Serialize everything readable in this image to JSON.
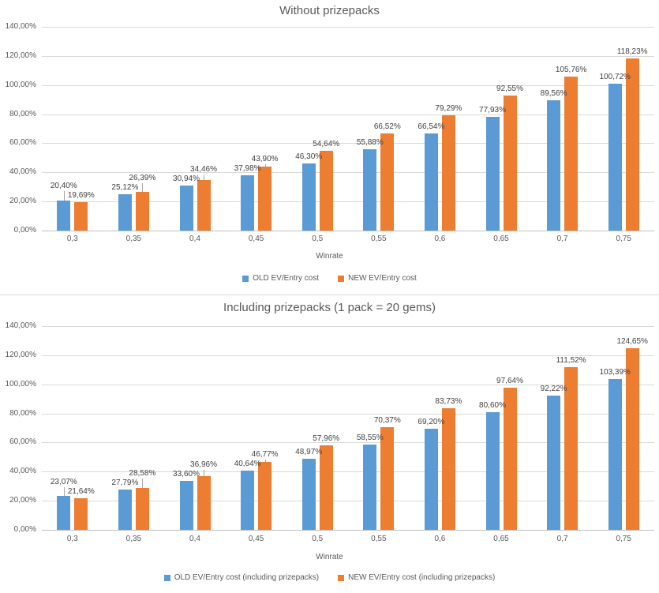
{
  "accent_colors": {
    "series_old_blue": "#5B9BD5",
    "series_new_orange": "#ED7D31",
    "grid": "#D9D9D9",
    "axis": "#BFBFBF",
    "text": "#595959",
    "data_label": "#404040"
  },
  "chart_data": [
    {
      "type": "bar",
      "title": "Without prizepacks",
      "xlabel": "Winrate",
      "ylabel": "",
      "ylim": [
        0,
        140
      ],
      "grid": true,
      "legend_position": "bottom",
      "y_ticks": [
        "140,00%",
        "120,00%",
        "100,00%",
        "80,00%",
        "60,00%",
        "40,00%",
        "20,00%",
        "0,00%"
      ],
      "categories": [
        "0,3",
        "0,35",
        "0,4",
        "0,45",
        "0,5",
        "0,55",
        "0,6",
        "0,65",
        "0,7",
        "0,75"
      ],
      "series": [
        {
          "name": "OLD EV/Entry cost",
          "color": "#5B9BD5",
          "values": [
            20.4,
            25.12,
            30.94,
            37.98,
            46.3,
            55.88,
            66.54,
            77.93,
            89.56,
            100.72
          ],
          "labels": [
            "20,40%",
            "25,12%",
            "30,94%",
            "37,98%",
            "46,30%",
            "55,88%",
            "66,54%",
            "77,93%",
            "89,56%",
            "100,72%"
          ]
        },
        {
          "name": "NEW EV/Entry cost",
          "color": "#ED7D31",
          "values": [
            19.69,
            26.39,
            34.46,
            43.9,
            54.64,
            66.52,
            79.29,
            92.55,
            105.76,
            118.23
          ],
          "labels": [
            "19,69%",
            "26,39%",
            "34,46%",
            "43,90%",
            "54,64%",
            "66,52%",
            "79,29%",
            "92,55%",
            "105,76%",
            "118,23%"
          ]
        }
      ]
    },
    {
      "type": "bar",
      "title": "Including prizepacks (1 pack = 20 gems)",
      "xlabel": "Winrate",
      "ylabel": "",
      "ylim": [
        0,
        140
      ],
      "grid": true,
      "legend_position": "bottom",
      "y_ticks": [
        "140,00%",
        "120,00%",
        "100,00%",
        "80,00%",
        "60,00%",
        "40,00%",
        "20,00%",
        "0,00%"
      ],
      "categories": [
        "0,3",
        "0,35",
        "0,4",
        "0,45",
        "0,5",
        "0,55",
        "0,6",
        "0,65",
        "0,7",
        "0,75"
      ],
      "series": [
        {
          "name": "OLD EV/Entry cost (including prizepacks)",
          "color": "#5B9BD5",
          "values": [
            23.07,
            27.79,
            33.6,
            40.64,
            48.97,
            58.55,
            69.2,
            80.6,
            92.22,
            103.39
          ],
          "labels": [
            "23,07%",
            "27,79%",
            "33,60%",
            "40,64%",
            "48,97%",
            "58,55%",
            "69,20%",
            "80,60%",
            "92,22%",
            "103,39%"
          ]
        },
        {
          "name": "NEW EV/Entry cost (including prizepacks)",
          "color": "#ED7D31",
          "values": [
            21.64,
            28.58,
            36.96,
            46.77,
            57.96,
            70.37,
            83.73,
            97.64,
            111.52,
            124.65
          ],
          "labels": [
            "21,64%",
            "28,58%",
            "36,96%",
            "46,77%",
            "57,96%",
            "70,37%",
            "83,73%",
            "97,64%",
            "111,52%",
            "124,65%"
          ]
        }
      ]
    }
  ]
}
